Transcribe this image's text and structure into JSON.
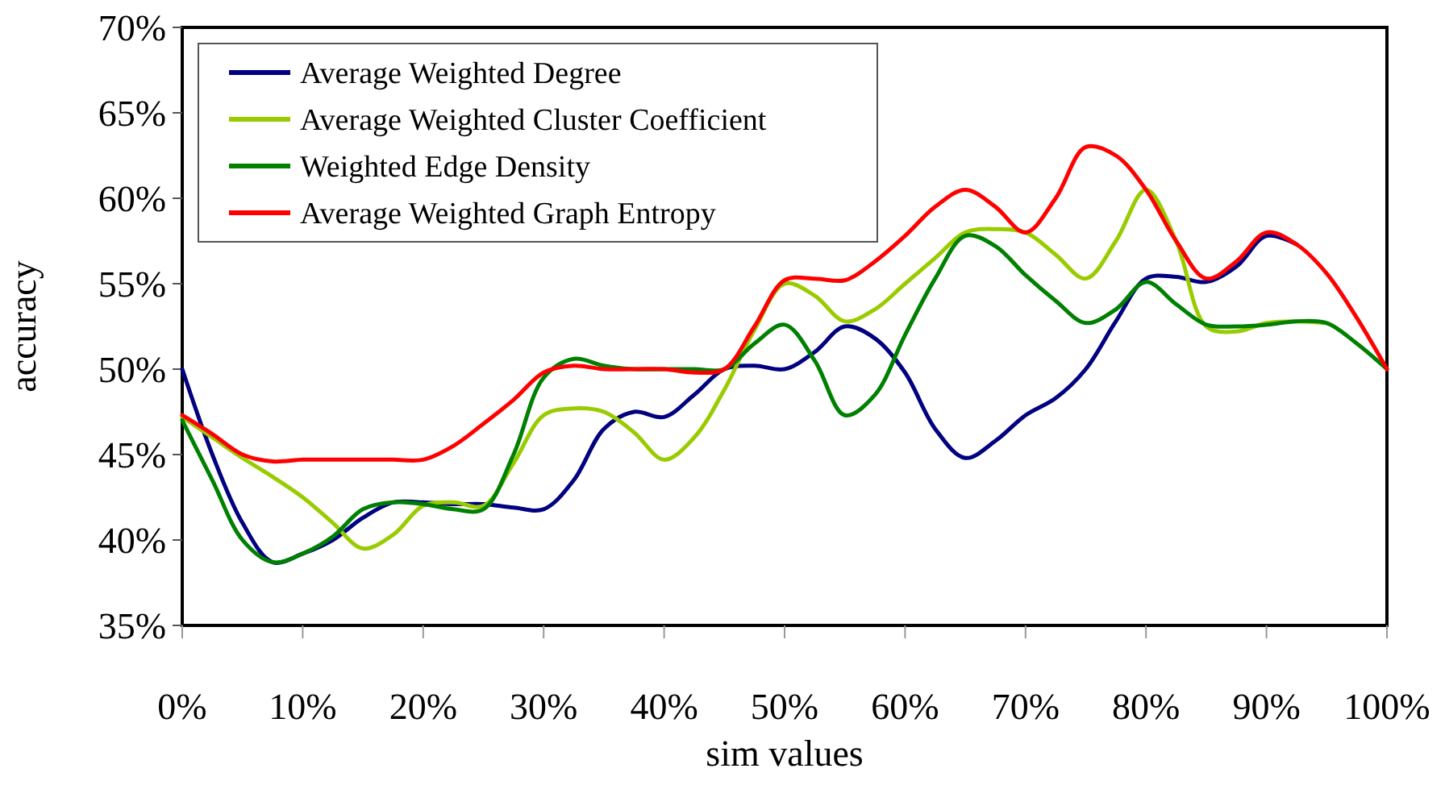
{
  "chart_data": {
    "type": "line",
    "xlabel": "sim values",
    "ylabel": "accuracy",
    "x": [
      0,
      2.5,
      5,
      7.5,
      10,
      12.5,
      15,
      17.5,
      20,
      22.5,
      25,
      27.5,
      30,
      32.5,
      35,
      37.5,
      40,
      42.5,
      45,
      47.5,
      50,
      52.5,
      55,
      57.5,
      60,
      62.5,
      65,
      67.5,
      70,
      72.5,
      75,
      77.5,
      80,
      82.5,
      85,
      87.5,
      90,
      92.5,
      95,
      97.5,
      100
    ],
    "xlim": [
      0,
      100
    ],
    "xticks": [
      {
        "value": 0,
        "label": "0%"
      },
      {
        "value": 10,
        "label": "10%"
      },
      {
        "value": 20,
        "label": "20%"
      },
      {
        "value": 30,
        "label": "30%"
      },
      {
        "value": 40,
        "label": "40%"
      },
      {
        "value": 50,
        "label": "50%"
      },
      {
        "value": 60,
        "label": "60%"
      },
      {
        "value": 70,
        "label": "70%"
      },
      {
        "value": 80,
        "label": "80%"
      },
      {
        "value": 90,
        "label": "90%"
      },
      {
        "value": 100,
        "label": "100%"
      }
    ],
    "ylim": [
      35,
      70
    ],
    "yticks": [
      {
        "value": 35,
        "label": "35%"
      },
      {
        "value": 40,
        "label": "40%"
      },
      {
        "value": 45,
        "label": "45%"
      },
      {
        "value": 50,
        "label": "50%"
      },
      {
        "value": 55,
        "label": "55%"
      },
      {
        "value": 60,
        "label": "60%"
      },
      {
        "value": 65,
        "label": "65%"
      },
      {
        "value": 70,
        "label": "70%"
      }
    ],
    "grid": false,
    "legend": "top left",
    "marker": "none",
    "line_style": "solid",
    "series": [
      {
        "name": "Average Weighted Degree",
        "color": "#000080",
        "values": [
          50,
          45,
          41,
          38.7,
          39.2,
          40,
          41.3,
          42.2,
          42.2,
          42.1,
          42.1,
          41.9,
          41.8,
          43.5,
          46.5,
          47.5,
          47.2,
          48.5,
          50,
          50.2,
          50,
          51,
          52.5,
          51.8,
          49.8,
          46.5,
          44.8,
          45.8,
          47.3,
          48.3,
          50,
          52.8,
          55.3,
          55.4,
          55.1,
          56,
          57.8,
          57.3,
          null,
          null,
          null
        ]
      },
      {
        "name": "Average Weighted Cluster Coefficient",
        "color": "#99cc00",
        "values": [
          47.2,
          46,
          44.8,
          43.7,
          42.5,
          41,
          39.5,
          40.3,
          42,
          42.2,
          42,
          44.5,
          47.3,
          47.7,
          47.5,
          46.3,
          44.7,
          46,
          48.8,
          52.3,
          55,
          54.3,
          52.8,
          53.5,
          55,
          56.5,
          58,
          58.2,
          58,
          56.7,
          55.3,
          57.5,
          60.5,
          57.5,
          52.5,
          52.2,
          52.7,
          52.8,
          52.7,
          null,
          null
        ]
      },
      {
        "name": "Weighted Edge Density",
        "color": "#008000",
        "values": [
          47,
          43.5,
          40,
          38.7,
          39.2,
          40.2,
          41.8,
          42.2,
          42.1,
          41.8,
          41.8,
          45,
          49.5,
          50.6,
          50.2,
          50,
          50,
          50,
          50,
          51.5,
          52.6,
          50.5,
          47.3,
          48.5,
          52,
          55.3,
          57.8,
          57.2,
          55.5,
          54,
          52.7,
          53.5,
          55.1,
          53.8,
          52.6,
          52.5,
          52.6,
          52.8,
          52.7,
          51.5,
          50
        ]
      },
      {
        "name": "Average Weighted Graph Entropy",
        "color": "#ff0000",
        "values": [
          47.3,
          46.2,
          45,
          44.6,
          44.7,
          44.7,
          44.7,
          44.7,
          44.7,
          45.5,
          46.8,
          48.2,
          49.8,
          50.2,
          50,
          50,
          50,
          49.8,
          50,
          52.5,
          55.2,
          55.3,
          55.2,
          56.3,
          57.8,
          59.5,
          60.5,
          59.5,
          58,
          60,
          63,
          62.5,
          60.5,
          57.5,
          55.3,
          56.3,
          58,
          57.3,
          55.6,
          53,
          50
        ]
      }
    ]
  }
}
